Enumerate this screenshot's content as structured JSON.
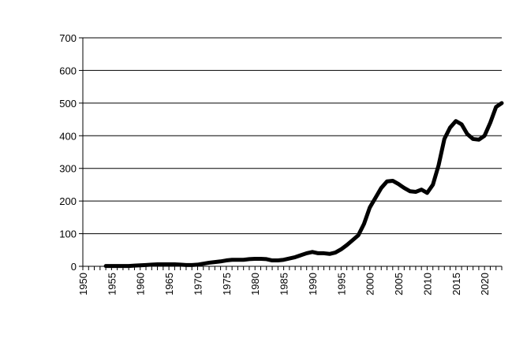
{
  "chart_data": {
    "type": "line",
    "title": "",
    "xlabel": "",
    "ylabel": "",
    "xlim": [
      1950,
      2023
    ],
    "ylim": [
      0,
      700
    ],
    "x_ticks": [
      1950,
      1955,
      1960,
      1965,
      1970,
      1975,
      1980,
      1985,
      1990,
      1995,
      2000,
      2005,
      2010,
      2015,
      2020
    ],
    "y_ticks": [
      0,
      100,
      200,
      300,
      400,
      500,
      600,
      700
    ],
    "grid": "horizontal",
    "legend": "none",
    "series": [
      {
        "color": "#000000",
        "x": [
          1954,
          1955,
          1956,
          1957,
          1958,
          1959,
          1960,
          1961,
          1962,
          1963,
          1964,
          1965,
          1966,
          1967,
          1968,
          1969,
          1970,
          1971,
          1972,
          1973,
          1974,
          1975,
          1976,
          1977,
          1978,
          1979,
          1980,
          1981,
          1982,
          1983,
          1984,
          1985,
          1986,
          1987,
          1988,
          1989,
          1990,
          1991,
          1992,
          1993,
          1994,
          1995,
          1996,
          1997,
          1998,
          1999,
          2000,
          2001,
          2002,
          2003,
          2004,
          2005,
          2006,
          2007,
          2008,
          2009,
          2010,
          2011,
          2012,
          2013,
          2014,
          2015,
          2016,
          2017,
          2018,
          2019,
          2020,
          2021,
          2022,
          2023
        ],
        "values": [
          1,
          1,
          1,
          1,
          1,
          2,
          3,
          4,
          5,
          6,
          6,
          6,
          6,
          5,
          4,
          4,
          5,
          8,
          11,
          13,
          15,
          18,
          20,
          20,
          20,
          22,
          23,
          23,
          22,
          18,
          18,
          20,
          24,
          28,
          34,
          40,
          44,
          40,
          40,
          38,
          42,
          52,
          65,
          80,
          95,
          130,
          180,
          210,
          240,
          260,
          262,
          252,
          240,
          230,
          228,
          235,
          225,
          250,
          310,
          390,
          425,
          445,
          435,
          405,
          390,
          388,
          400,
          440,
          488,
          500
        ]
      }
    ]
  }
}
